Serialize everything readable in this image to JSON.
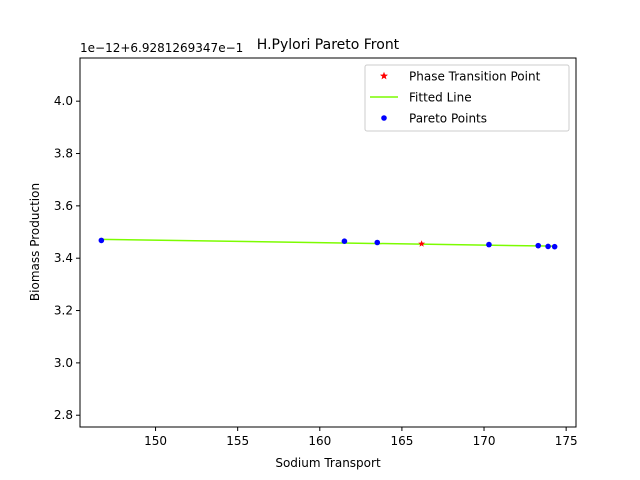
{
  "chart_data": {
    "type": "scatter",
    "title": "H.Pylori Pareto Front",
    "xlabel": "Sodium Transport",
    "ylabel": "Biomass Production",
    "y_offset_label": "1e−12+6.9281269347e−1",
    "xlim": [
      145.4,
      175.6
    ],
    "ylim": [
      2.755,
      4.165
    ],
    "x_ticks": [
      150,
      155,
      160,
      165,
      170,
      175
    ],
    "x_tick_labels": [
      "150",
      "155",
      "160",
      "165",
      "170",
      "175"
    ],
    "y_ticks": [
      2.8,
      3.0,
      3.2,
      3.4,
      3.6,
      3.8,
      4.0
    ],
    "y_tick_labels": [
      "2.8",
      "3.0",
      "3.2",
      "3.4",
      "3.6",
      "3.8",
      "4.0"
    ],
    "grid": false,
    "legend_position": "top-right",
    "series": [
      {
        "name": "Phase Transition Point",
        "kind": "marker",
        "marker": "star",
        "color": "#ff0000",
        "x": [
          166.2
        ],
        "y": [
          3.455
        ]
      },
      {
        "name": "Fitted Line",
        "kind": "line",
        "color": "#7cfc00",
        "x": [
          146.7,
          174.3
        ],
        "y": [
          3.472,
          3.446
        ]
      },
      {
        "name": "Pareto Points",
        "kind": "marker",
        "marker": "dot",
        "color": "#0000ff",
        "x": [
          146.7,
          161.5,
          163.5,
          170.3,
          173.3,
          173.9,
          174.3
        ],
        "y": [
          3.468,
          3.465,
          3.46,
          3.452,
          3.448,
          3.445,
          3.444
        ]
      }
    ]
  }
}
